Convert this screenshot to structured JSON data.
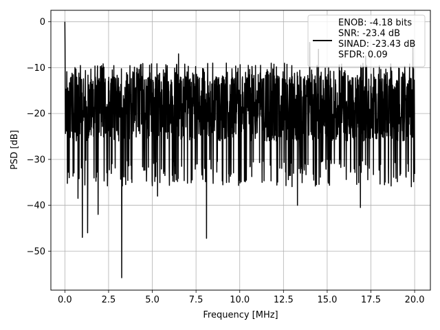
{
  "chart_data": {
    "type": "line",
    "xlabel": "Frequency [MHz]",
    "ylabel": "PSD [dB]",
    "xlim": [
      -0.8,
      20.9
    ],
    "ylim": [
      -58.5,
      2.5
    ],
    "xticks": [
      0.0,
      2.5,
      5.0,
      7.5,
      10.0,
      12.5,
      15.0,
      17.5,
      20.0
    ],
    "xtick_labels": [
      "0.0",
      "2.5",
      "5.0",
      "7.5",
      "10.0",
      "12.5",
      "15.0",
      "17.5",
      "20.0"
    ],
    "yticks": [
      0,
      -10,
      -20,
      -30,
      -40,
      -50
    ],
    "ytick_labels": [
      "0",
      "−10",
      "−20",
      "−30",
      "−40",
      "−50"
    ],
    "grid": true,
    "legend_position": "top-right",
    "series": [
      {
        "name": "ENOB: -4.18 bits\nSNR: -23.4 dB\nSINAD: -23.43 dB\nSFDR: 0.09",
        "color": "#000000",
        "noise_band_db": [
          -9,
          -30
        ],
        "peak_x": 0.0,
        "peak_y": 0.0,
        "notable_dips": [
          {
            "x": 0.25,
            "y": -34
          },
          {
            "x": 0.75,
            "y": -38.5
          },
          {
            "x": 1.0,
            "y": -47
          },
          {
            "x": 1.3,
            "y": -46
          },
          {
            "x": 1.9,
            "y": -42
          },
          {
            "x": 3.25,
            "y": -55.8
          },
          {
            "x": 5.3,
            "y": -38
          },
          {
            "x": 8.1,
            "y": -47.2
          },
          {
            "x": 13.3,
            "y": -40
          },
          {
            "x": 16.9,
            "y": -40.5
          }
        ],
        "upper_spikes": [
          {
            "x": 6.5,
            "y": -7
          },
          {
            "x": 14.0,
            "y": -4.5
          },
          {
            "x": 14.5,
            "y": -6
          },
          {
            "x": 17.2,
            "y": -7.5
          },
          {
            "x": 19.9,
            "y": -4
          }
        ]
      }
    ]
  }
}
